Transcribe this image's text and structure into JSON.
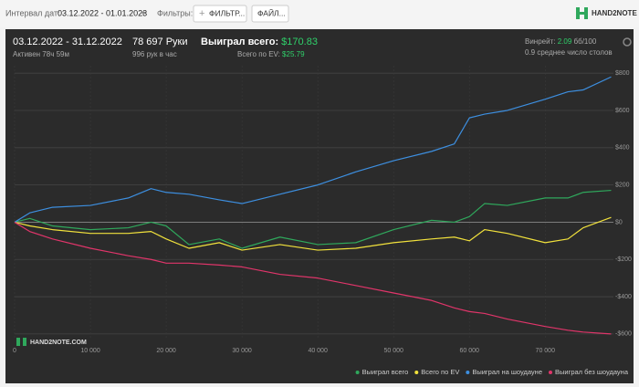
{
  "topbar": {
    "interval_label": "Интервал дат:",
    "interval_value": "03.12.2022 - 01.01.2023",
    "filters_label": "Фильтры:",
    "filter_button": "ФИЛЬТР...",
    "file_button": "ФАЙЛ...",
    "logo": "HAND2NOTE"
  },
  "summary": {
    "period": "03.12.2022 - 31.12.2022",
    "active": "Активен 78ч 59м",
    "hands": "78 697 Руки",
    "hands_per_hour": "996 рук в час",
    "won_label": "Выиграл всего:",
    "won_value": "$170.83",
    "ev_label": "Всего по EV:",
    "ev_value": "$25.79",
    "winrate_label": "Винрейт:",
    "winrate_value": "2.09",
    "winrate_unit": "бб/100",
    "tables": "0.9 среднее число столов"
  },
  "watermark": "HAND2NOTE.COM",
  "chart_data": {
    "type": "line",
    "x": [
      0,
      2000,
      5000,
      10000,
      15000,
      18000,
      20000,
      23000,
      27000,
      30000,
      35000,
      40000,
      45000,
      50000,
      55000,
      58000,
      60000,
      62000,
      65000,
      70000,
      73000,
      75000,
      78697
    ],
    "series": [
      {
        "name": "Выиграл всего",
        "color": "#2fa85c",
        "values": [
          0,
          20,
          -20,
          -40,
          -30,
          0,
          -20,
          -120,
          -90,
          -140,
          -80,
          -120,
          -110,
          -40,
          10,
          0,
          30,
          100,
          90,
          130,
          130,
          160,
          170.83
        ]
      },
      {
        "name": "Всего по EV",
        "color": "#f2e23c",
        "values": [
          0,
          -20,
          -40,
          -60,
          -60,
          -50,
          -90,
          -140,
          -110,
          -150,
          -120,
          -150,
          -140,
          -110,
          -90,
          -80,
          -100,
          -40,
          -60,
          -110,
          -90,
          -30,
          25.79
        ]
      },
      {
        "name": "Выиграл на шоудауне",
        "color": "#3d8fe0",
        "values": [
          0,
          50,
          80,
          90,
          130,
          180,
          160,
          150,
          120,
          100,
          150,
          200,
          270,
          330,
          380,
          420,
          560,
          580,
          600,
          660,
          700,
          710,
          780
        ]
      },
      {
        "name": "Выиграл без шоудауна",
        "color": "#e0356a",
        "values": [
          0,
          -50,
          -90,
          -140,
          -180,
          -200,
          -220,
          -220,
          -230,
          -240,
          -280,
          -300,
          -340,
          -380,
          -420,
          -460,
          -480,
          -490,
          -520,
          -560,
          -580,
          -590,
          -600
        ]
      }
    ],
    "xlim": [
      0,
      79000
    ],
    "ylim": [
      -630,
      840
    ],
    "xticks": [
      0,
      {
        "value": 10000,
        "label": "10 000"
      },
      {
        "value": 20000,
        "label": "20 000"
      },
      {
        "value": 30000,
        "label": "30 000"
      },
      {
        "value": 40000,
        "label": "40 000"
      },
      {
        "value": 50000,
        "label": "50 000"
      },
      {
        "value": 60000,
        "label": "60 000"
      },
      {
        "value": 70000,
        "label": "70 000"
      }
    ],
    "yticks": [
      {
        "value": -600,
        "label": "-$600"
      },
      {
        "value": -400,
        "label": "-$400"
      },
      {
        "value": -200,
        "label": "-$200"
      },
      {
        "value": 0,
        "label": "$0"
      },
      {
        "value": 200,
        "label": "$200"
      },
      {
        "value": 400,
        "label": "$400"
      },
      {
        "value": 600,
        "label": "$600"
      },
      {
        "value": 800,
        "label": "$800"
      }
    ],
    "grid": true,
    "legend": "bottom-right"
  }
}
